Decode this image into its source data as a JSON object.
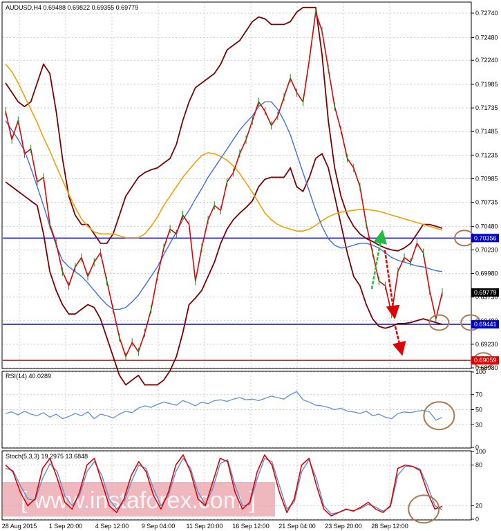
{
  "header": {
    "main": "AUDUSD,H4  0.69488 0.69822 0.69355 0.69779",
    "rsi": "RSI(14) 40.0289",
    "stoch": "Stoch(5,3,3) 19.2975 13.6848"
  },
  "watermark": "[ www.instaforex.com ]",
  "colors": {
    "price": "#e00000",
    "bollinger": "#7a0000",
    "ma_long": "#f0a000",
    "ma_short": "#3a6fe0",
    "support": "#0000cc",
    "target": "#e00000",
    "rsi": "#5b8fd6",
    "stoch_main": "#e00000",
    "stoch_signal": "#5b8fd6",
    "circle": "#b07850",
    "arrow_up": "#22bb44",
    "arrow_down": "#e00000"
  },
  "chart_data": [
    {
      "type": "line",
      "panel": "price",
      "ylim": [
        0.6898,
        0.7285
      ],
      "y_ticks": [
        "0.72740",
        "0.72480",
        "0.72240",
        "0.71985",
        "0.71735",
        "0.71485",
        "0.71235",
        "0.70985",
        "0.70735",
        "0.70480",
        "0.70230",
        "0.69980",
        "0.69730",
        "0.69480",
        "0.69230",
        "0.68980"
      ],
      "x_ticks": [
        "28 Aug 2015",
        "1 Sep 20:00",
        "4 Sep 12:00",
        "9 Sep 04:00",
        "11 Sep 20:00",
        "16 Sep 12:00",
        "21 Sep 04:00",
        "23 Sep 20:00",
        "28 Sep 12:00"
      ],
      "horizontal_lines": [
        {
          "value": 0.70356,
          "label": "0.70356",
          "role": "support"
        },
        {
          "value": 0.69441,
          "label": "0.69441",
          "role": "support"
        },
        {
          "value": 0.69059,
          "label": "0.69059",
          "role": "target"
        }
      ],
      "current_price": {
        "value": 0.69779,
        "label": "0.69779"
      },
      "series": [
        {
          "role": "price",
          "values": [
            0.717,
            0.714,
            0.716,
            0.7125,
            0.713,
            0.7095,
            0.71,
            0.705,
            0.703,
            0.7,
            0.6985,
            0.7005,
            0.7015,
            0.6995,
            0.701,
            0.702,
            0.699,
            0.696,
            0.693,
            0.691,
            0.6925,
            0.6915,
            0.6935,
            0.696,
            0.6995,
            0.7025,
            0.7045,
            0.704,
            0.706,
            0.705,
            0.699,
            0.7025,
            0.7055,
            0.707,
            0.7065,
            0.7095,
            0.7105,
            0.7125,
            0.714,
            0.716,
            0.718,
            0.717,
            0.7155,
            0.7165,
            0.7185,
            0.7205,
            0.719,
            0.718,
            0.7225,
            0.7275,
            0.7255,
            0.7215,
            0.7175,
            0.715,
            0.712,
            0.711,
            0.709,
            0.705,
            0.702,
            0.699,
            0.6985,
            0.6955,
            0.7,
            0.7015,
            0.701,
            0.703,
            0.702,
            0.698,
            0.695,
            0.6978
          ]
        },
        {
          "role": "bollinger-upper",
          "values": [
            0.72,
            0.719,
            0.718,
            0.7175,
            0.718,
            0.72,
            0.722,
            0.721,
            0.717,
            0.712,
            0.708,
            0.706,
            0.705,
            0.705,
            0.704,
            0.703,
            0.703,
            0.704,
            0.706,
            0.708,
            0.709,
            0.71,
            0.7105,
            0.7108,
            0.711,
            0.7115,
            0.712,
            0.7135,
            0.716,
            0.718,
            0.7195,
            0.72,
            0.7205,
            0.721,
            0.722,
            0.7235,
            0.724,
            0.7245,
            0.7255,
            0.7265,
            0.727,
            0.7268,
            0.7262,
            0.7262,
            0.7262,
            0.7265,
            0.7275,
            0.728,
            0.728,
            0.728,
            0.723,
            0.716,
            0.711,
            0.708,
            0.706,
            0.7048,
            0.704,
            0.7035,
            0.7032,
            0.7028,
            0.7025,
            0.7023,
            0.7022,
            0.7025,
            0.703,
            0.704,
            0.705,
            0.705,
            0.7048,
            0.7046
          ]
        },
        {
          "role": "bollinger-lower",
          "values": [
            0.7095,
            0.709,
            0.7085,
            0.708,
            0.7075,
            0.707,
            0.704,
            0.7,
            0.698,
            0.6965,
            0.6955,
            0.6955,
            0.696,
            0.6965,
            0.6962,
            0.695,
            0.693,
            0.691,
            0.689,
            0.688,
            0.6885,
            0.689,
            0.688,
            0.688,
            0.688,
            0.6885,
            0.6895,
            0.691,
            0.6935,
            0.6965,
            0.6972,
            0.698,
            0.6995,
            0.701,
            0.703,
            0.7045,
            0.7055,
            0.7062,
            0.7068,
            0.7075,
            0.709,
            0.7098,
            0.71,
            0.71,
            0.71,
            0.711,
            0.709,
            0.7085,
            0.71,
            0.712,
            0.7125,
            0.711,
            0.708,
            0.705,
            0.702,
            0.6995,
            0.6985,
            0.6965,
            0.695,
            0.6942,
            0.694,
            0.6942,
            0.6945,
            0.6945,
            0.6946,
            0.6948,
            0.695,
            0.6948,
            0.6946,
            0.6944
          ]
        },
        {
          "role": "ma-long",
          "values": [
            0.722,
            0.7212,
            0.72,
            0.7186,
            0.7172,
            0.7158,
            0.7142,
            0.7128,
            0.7112,
            0.7097,
            0.7082,
            0.7068,
            0.7056,
            0.7048,
            0.7042,
            0.704,
            0.704,
            0.704,
            0.7038,
            0.7036,
            0.7036,
            0.7036,
            0.704,
            0.7048,
            0.7058,
            0.707,
            0.708,
            0.709,
            0.71,
            0.7108,
            0.7116,
            0.7123,
            0.7126,
            0.7125,
            0.7122,
            0.7118,
            0.7112,
            0.7104,
            0.7094,
            0.7084,
            0.7073,
            0.7062,
            0.7055,
            0.705,
            0.7047,
            0.7045,
            0.7043,
            0.7043,
            0.7045,
            0.7049,
            0.7054,
            0.7058,
            0.7061,
            0.7063,
            0.7064,
            0.7065,
            0.7066,
            0.7066,
            0.7065,
            0.7064,
            0.7062,
            0.706,
            0.7058,
            0.7056,
            0.7054,
            0.7052,
            0.705,
            0.7048,
            0.7046,
            0.7044
          ]
        },
        {
          "role": "ma-short",
          "values": [
            0.716,
            0.715,
            0.714,
            0.7128,
            0.711,
            0.709,
            0.707,
            0.7048,
            0.7028,
            0.7012,
            0.7005,
            0.7,
            0.6995,
            0.6988,
            0.698,
            0.6972,
            0.6965,
            0.696,
            0.696,
            0.6962,
            0.6968,
            0.6975,
            0.6985,
            0.6995,
            0.7005,
            0.7018,
            0.703,
            0.7042,
            0.7055,
            0.7065,
            0.7077,
            0.7088,
            0.71,
            0.711,
            0.712,
            0.713,
            0.714,
            0.715,
            0.7158,
            0.7165,
            0.7175,
            0.718,
            0.718,
            0.7172,
            0.716,
            0.7145,
            0.7125,
            0.7105,
            0.7085,
            0.7065,
            0.7048,
            0.7035,
            0.7028,
            0.7025,
            0.7026,
            0.7028,
            0.703,
            0.703,
            0.7028,
            0.7025,
            0.702,
            0.7015,
            0.7012,
            0.701,
            0.7008,
            0.7006,
            0.7005,
            0.7003,
            0.7001,
            0.7
          ]
        }
      ]
    },
    {
      "type": "line",
      "panel": "rsi",
      "ylim": [
        0,
        100
      ],
      "y_ticks": [
        "100",
        "70",
        "50",
        "30",
        "0"
      ],
      "series": [
        {
          "role": "rsi",
          "values": [
            45,
            47,
            43,
            48,
            44,
            42,
            46,
            40,
            44,
            38,
            41,
            45,
            42,
            47,
            38,
            44,
            42,
            39,
            44,
            48,
            46,
            52,
            55,
            53,
            57,
            60,
            58,
            56,
            62,
            59,
            55,
            60,
            58,
            62,
            63,
            61,
            64,
            66,
            63,
            64,
            62,
            65,
            68,
            66,
            64,
            70,
            74,
            63,
            60,
            56,
            55,
            53,
            50,
            52,
            48,
            47,
            45,
            48,
            42,
            44,
            40,
            38,
            45,
            47,
            46,
            48,
            49,
            47,
            36,
            40
          ]
        }
      ]
    },
    {
      "type": "line",
      "panel": "stoch",
      "ylim": [
        0,
        100
      ],
      "y_ticks": [
        "100",
        "80",
        "20",
        "0"
      ],
      "series": [
        {
          "role": "stoch-main",
          "values": [
            80,
            70,
            40,
            20,
            30,
            75,
            90,
            60,
            25,
            15,
            40,
            80,
            90,
            55,
            20,
            10,
            30,
            65,
            85,
            70,
            35,
            15,
            40,
            80,
            95,
            70,
            30,
            20,
            55,
            90,
            85,
            40,
            15,
            25,
            70,
            95,
            80,
            40,
            10,
            30,
            80,
            90,
            50,
            15,
            5,
            10,
            15,
            12,
            18,
            25,
            15,
            10,
            20,
            75,
            80,
            78,
            72,
            40,
            15,
            19
          ]
        },
        {
          "role": "stoch-signal",
          "values": [
            75,
            72,
            50,
            30,
            28,
            60,
            82,
            70,
            35,
            20,
            35,
            70,
            85,
            65,
            30,
            15,
            25,
            55,
            80,
            75,
            45,
            20,
            35,
            70,
            90,
            75,
            40,
            22,
            45,
            82,
            88,
            50,
            20,
            22,
            60,
            90,
            85,
            50,
            15,
            25,
            70,
            88,
            60,
            20,
            8,
            10,
            14,
            13,
            16,
            22,
            18,
            12,
            18,
            65,
            78,
            78,
            74,
            50,
            20,
            14
          ]
        }
      ]
    }
  ],
  "annotations": {
    "circles": [
      {
        "panel": "price",
        "x_index": 72.5,
        "value": 0.70356
      },
      {
        "panel": "price",
        "x_index": 68.5,
        "value": 0.6946
      },
      {
        "panel": "price",
        "x_index": 73.5,
        "value": 0.6946
      },
      {
        "panel": "price",
        "x_index": 75.5,
        "value": 0.69059
      },
      {
        "panel": "rsi",
        "x_index": 68.5,
        "value": 42
      },
      {
        "panel": "stoch",
        "x_index": 56.5,
        "value": 15
      }
    ]
  }
}
